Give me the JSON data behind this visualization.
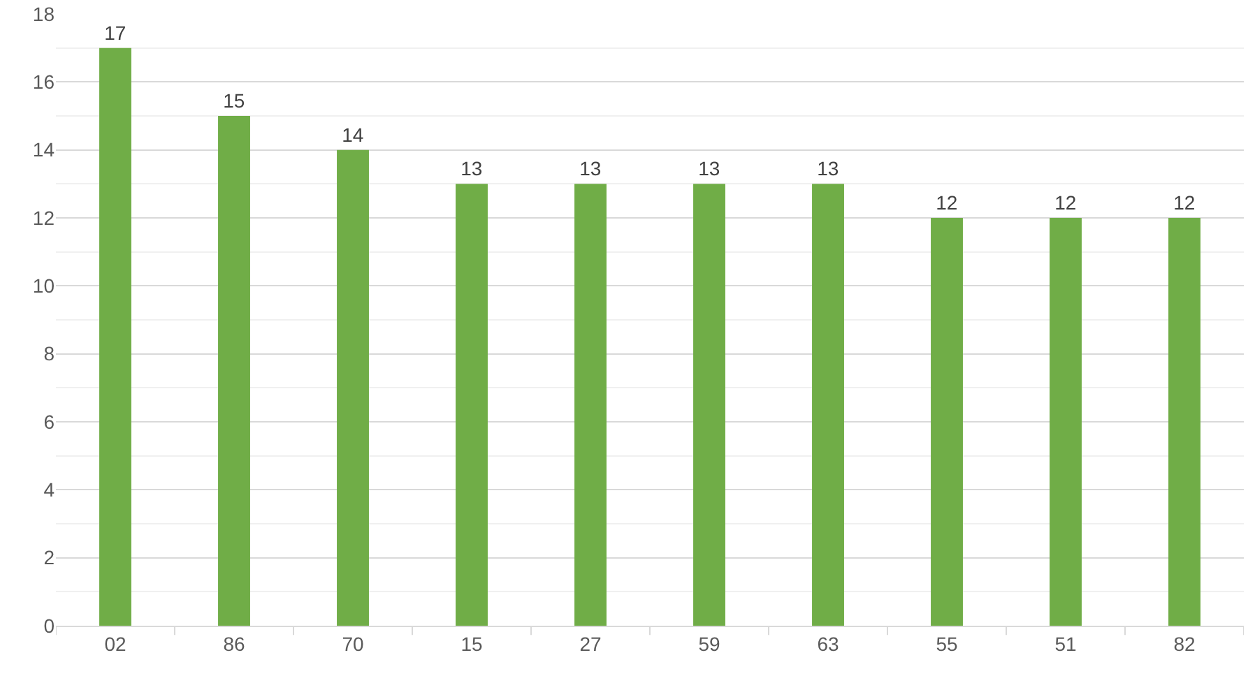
{
  "chart_data": {
    "type": "bar",
    "categories": [
      "02",
      "86",
      "70",
      "15",
      "27",
      "59",
      "63",
      "55",
      "51",
      "82"
    ],
    "values": [
      17,
      15,
      14,
      13,
      13,
      13,
      13,
      12,
      12,
      12
    ],
    "color": "#70ad47",
    "ylim": [
      0,
      18
    ],
    "yticks": [
      0,
      2,
      4,
      6,
      8,
      10,
      12,
      14,
      16,
      18
    ],
    "grid": "y",
    "data_labels": true
  }
}
